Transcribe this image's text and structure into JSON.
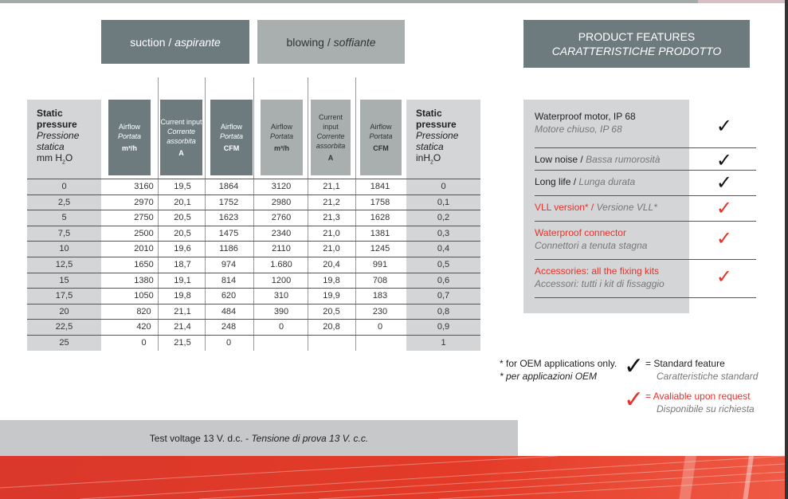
{
  "tabs": {
    "suction": {
      "en": "suction",
      "it": "aspirante"
    },
    "blowing": {
      "en": "blowing",
      "it": "soffiante"
    }
  },
  "features_title": {
    "en": "PRODUCT FEATURES",
    "it": "CARATTERISTICHE PRODOTTO"
  },
  "table": {
    "left_header": {
      "l1": "Static",
      "l2": "pressure",
      "l3": "Pressione",
      "l4": "statica",
      "l5": "mm H",
      "sub": "2",
      "l6": "O"
    },
    "right_header": {
      "l1": "Static",
      "l2": "pressure",
      "l3": "Pressione",
      "l4": "statica",
      "l5": "inH",
      "sub": "2",
      "l6": "O"
    },
    "columns": [
      {
        "a": "Airflow",
        "b": "Portata",
        "u": "m³/h"
      },
      {
        "a": "Current input",
        "b": "Corrente assorbita",
        "u": "A"
      },
      {
        "a": "Airflow",
        "b": "Portata",
        "u": "CFM"
      },
      {
        "a": "Airflow",
        "b": "Portata",
        "u": "m³/h"
      },
      {
        "a": "Current input",
        "b": "Corrente assorbita",
        "u": "A"
      },
      {
        "a": "Airflow",
        "b": "Portata",
        "u": "CFM"
      }
    ],
    "rows": [
      [
        "0",
        "3160",
        "19,5",
        "1864",
        "3120",
        "21,1",
        "1841",
        "0"
      ],
      [
        "2,5",
        "2970",
        "20,1",
        "1752",
        "2980",
        "21,2",
        "1758",
        "0,1"
      ],
      [
        "5",
        "2750",
        "20,5",
        "1623",
        "2760",
        "21,3",
        "1628",
        "0,2"
      ],
      [
        "7,5",
        "2500",
        "20,5",
        "1475",
        "2340",
        "21,0",
        "1381",
        "0,3"
      ],
      [
        "10",
        "2010",
        "19,6",
        "1186",
        "2110",
        "21,0",
        "1245",
        "0,4"
      ],
      [
        "12,5",
        "1650",
        "18,7",
        "974",
        "1.680",
        "20,4",
        "991",
        "0,5"
      ],
      [
        "15",
        "1380",
        "19,1",
        "814",
        "1200",
        "19,8",
        "708",
        "0,6"
      ],
      [
        "17,5",
        "1050",
        "19,8",
        "620",
        "310",
        "19,9",
        "183",
        "0,7"
      ],
      [
        "20",
        "820",
        "21,1",
        "484",
        "390",
        "20,5",
        "230",
        "0,8"
      ],
      [
        "22,5",
        "420",
        "21,4",
        "248",
        "0",
        "20,8",
        "0",
        "0,9"
      ],
      [
        "25",
        "0",
        "21,5",
        "0",
        "",
        "",
        "",
        "1"
      ]
    ]
  },
  "features": [
    {
      "en": "Waterproof motor, IP 68",
      "it": "Motore chiuso, IP 68",
      "type": "standard"
    },
    {
      "en": "Low noise",
      "it": "Bassa rumorosità",
      "type": "standard"
    },
    {
      "en": "Long life",
      "it": "Lunga durata",
      "type": "standard"
    },
    {
      "en": "VLL version*",
      "it": "Versione VLL*",
      "type": "request"
    },
    {
      "en": "Waterproof connector",
      "it": "Connettori a tenuta stagna",
      "type": "request"
    },
    {
      "en": "Accessories: all the fixing kits",
      "it": "Accessori: tutti i kit di fissaggio",
      "type": "request"
    }
  ],
  "footnote": {
    "en": "* for OEM applications only.",
    "it": "* per applicazioni OEM"
  },
  "legend": {
    "standard_en": "= Standard feature",
    "standard_it": "Caratteristiche standard",
    "request_en": "= Avaliable upon request",
    "request_it": "Disponibile su richiesta"
  },
  "test_voltage": {
    "en": "Test voltage 13 V. d.c. - ",
    "it": "Tensione di prova 13 V. c.c."
  },
  "colors": {
    "dark_gray": "#6e7b7e",
    "light_gray": "#a9aeae",
    "accent_red": "#e8312a"
  },
  "icons": {
    "check": "check-mark-icon"
  }
}
